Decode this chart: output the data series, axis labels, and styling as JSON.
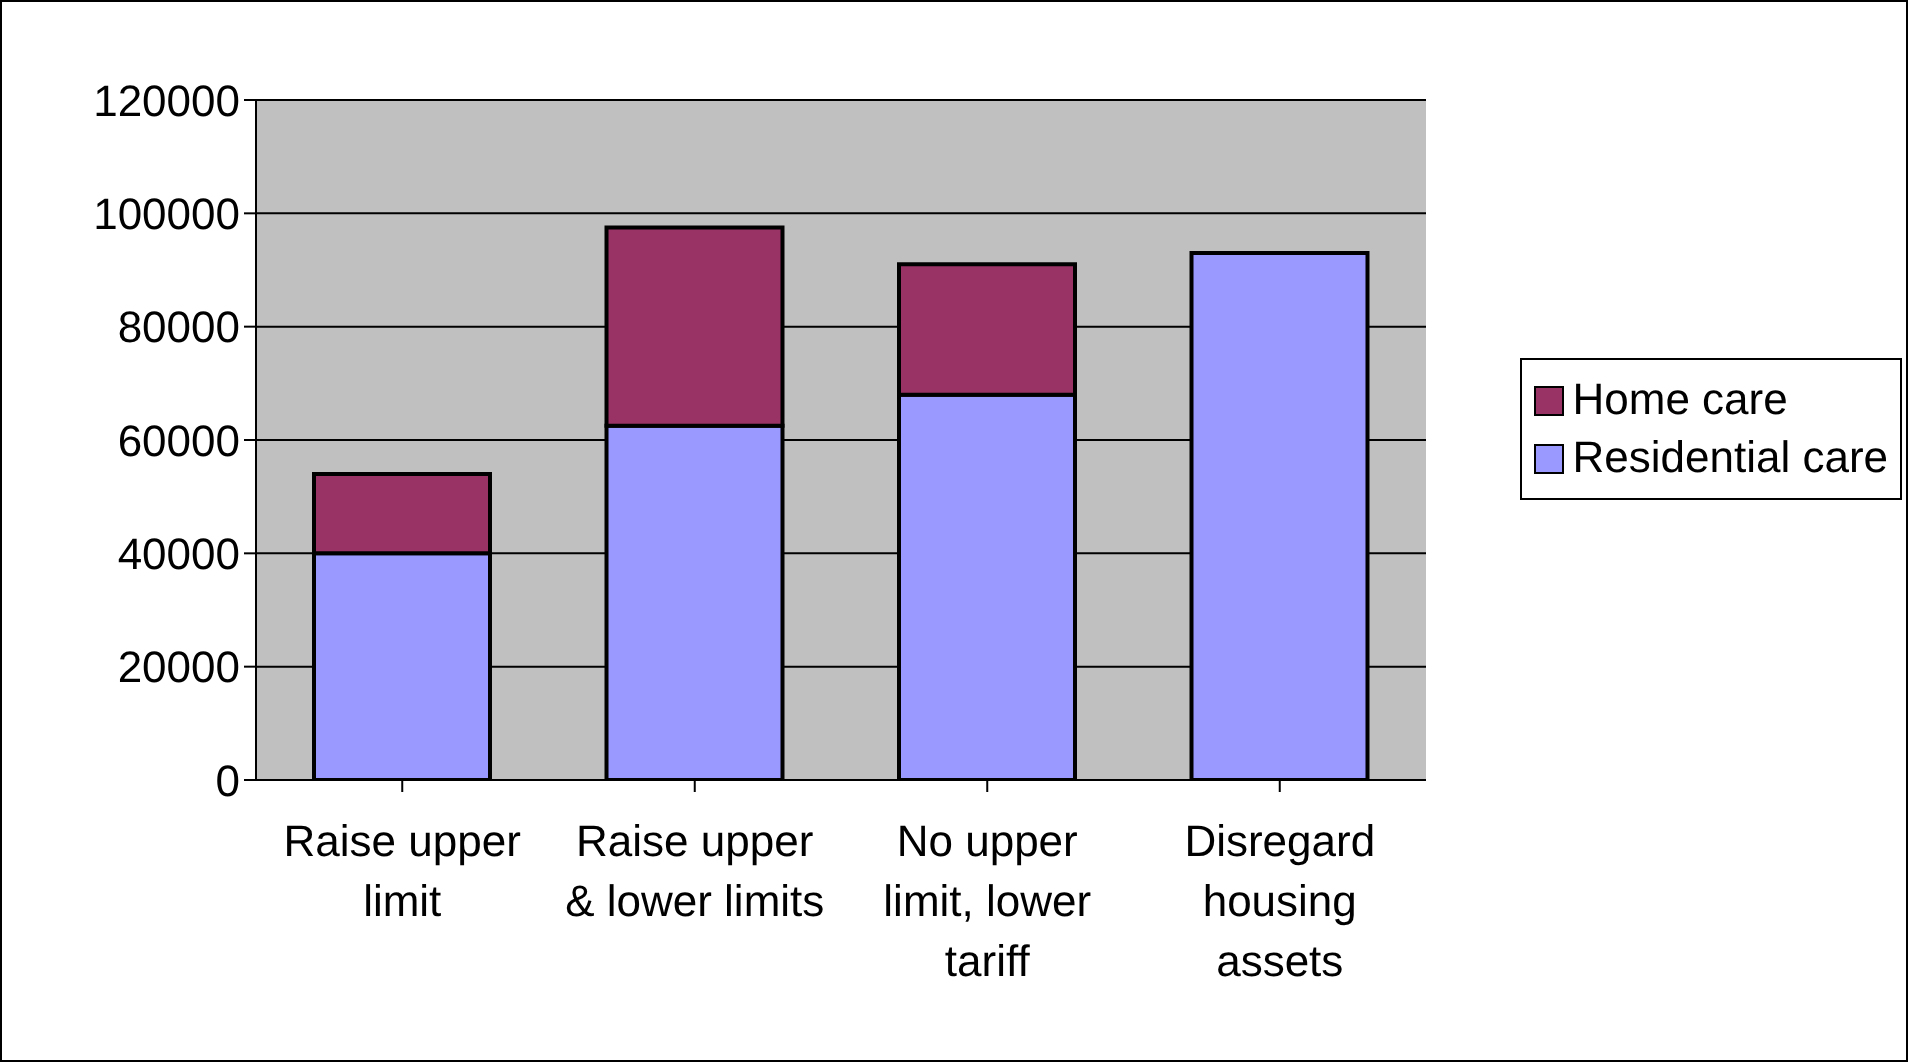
{
  "chart_data": {
    "type": "bar",
    "stacked": true,
    "categories": [
      "Raise upper limit",
      "Raise upper & lower limits",
      "No upper limit, lower tariff",
      "Disregard housing assets"
    ],
    "series": [
      {
        "name": "Residential care",
        "color": "#9999ff",
        "values": [
          40000,
          62500,
          68000,
          93000
        ]
      },
      {
        "name": "Home care",
        "color": "#993366",
        "values": [
          14000,
          35000,
          23000,
          null
        ]
      }
    ],
    "ylim": [
      0,
      120000
    ],
    "yticks": [
      0,
      20000,
      40000,
      60000,
      80000,
      100000,
      120000
    ],
    "grid": "y",
    "legend": "right"
  }
}
